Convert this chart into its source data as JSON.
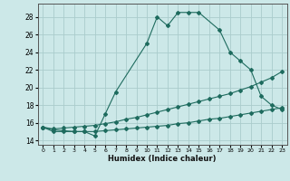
{
  "title": "",
  "xlabel": "Humidex (Indice chaleur)",
  "bg_color": "#cce8e8",
  "grid_color": "#aacccc",
  "line_color": "#1e6b5e",
  "xlim": [
    -0.5,
    23.5
  ],
  "ylim": [
    13.5,
    29.5
  ],
  "xticks": [
    0,
    1,
    2,
    3,
    4,
    5,
    6,
    7,
    8,
    9,
    10,
    11,
    12,
    13,
    14,
    15,
    16,
    17,
    18,
    19,
    20,
    21,
    22,
    23
  ],
  "yticks": [
    14,
    16,
    18,
    20,
    22,
    24,
    26,
    28
  ],
  "series": [
    {
      "x": [
        0,
        1,
        2,
        3,
        4,
        5,
        6,
        7,
        10,
        11,
        12,
        13,
        14,
        15,
        17,
        18,
        19,
        20,
        21,
        22,
        23
      ],
      "y": [
        15.5,
        15.0,
        15.0,
        15.0,
        15.0,
        14.5,
        17.0,
        19.5,
        25.0,
        28.0,
        27.0,
        28.5,
        28.5,
        28.5,
        26.5,
        24.0,
        23.0,
        22.0,
        19.0,
        18.0,
        17.5
      ]
    },
    {
      "x": [
        0,
        1,
        2,
        3,
        4,
        5,
        6,
        7,
        8,
        9,
        10,
        11,
        12,
        13,
        14,
        15,
        16,
        17,
        18,
        19,
        20,
        21,
        22,
        23
      ],
      "y": [
        15.5,
        15.3,
        15.4,
        15.5,
        15.6,
        15.7,
        15.9,
        16.1,
        16.4,
        16.6,
        16.9,
        17.2,
        17.5,
        17.8,
        18.1,
        18.4,
        18.7,
        19.0,
        19.3,
        19.7,
        20.1,
        20.6,
        21.1,
        21.8
      ]
    },
    {
      "x": [
        0,
        1,
        2,
        3,
        4,
        5,
        6,
        7,
        8,
        9,
        10,
        11,
        12,
        13,
        14,
        15,
        16,
        17,
        18,
        19,
        20,
        21,
        22,
        23
      ],
      "y": [
        15.5,
        15.2,
        15.1,
        15.0,
        15.0,
        15.0,
        15.1,
        15.2,
        15.3,
        15.4,
        15.5,
        15.6,
        15.7,
        15.9,
        16.0,
        16.2,
        16.4,
        16.5,
        16.7,
        16.9,
        17.1,
        17.3,
        17.5,
        17.7
      ]
    }
  ]
}
